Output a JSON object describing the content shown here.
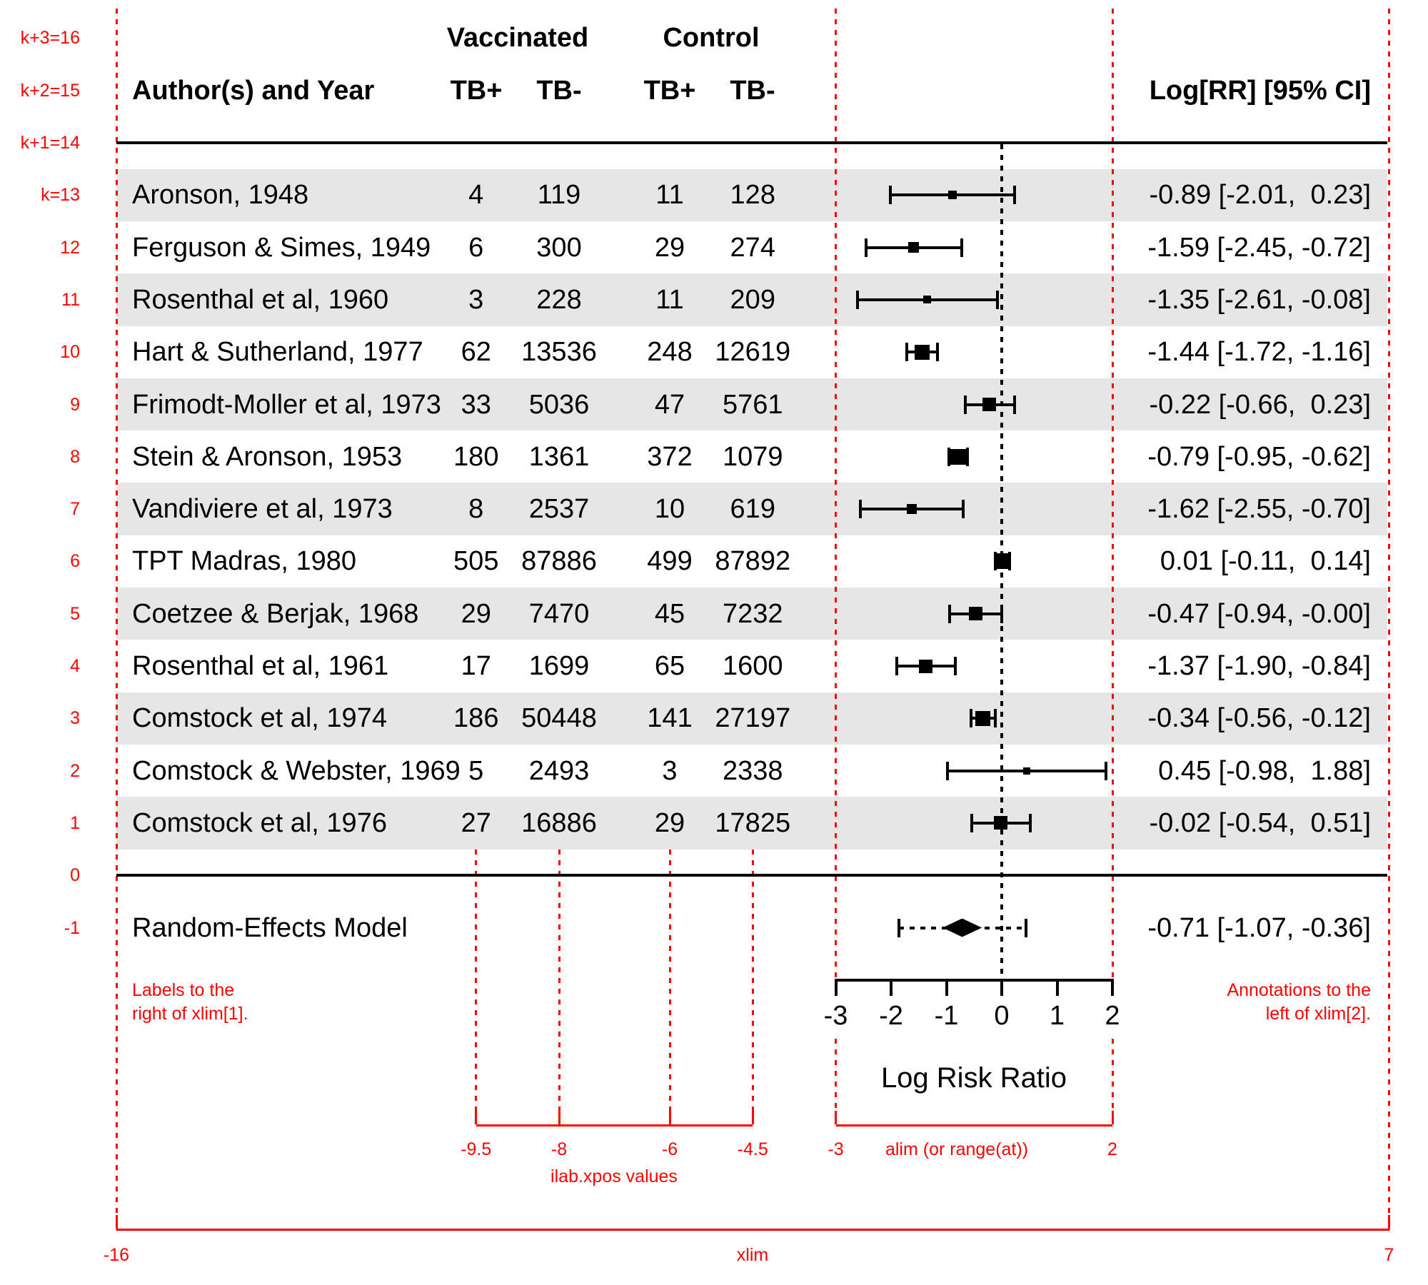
{
  "colors": {
    "red_annotation": "#ff0000",
    "row_band": "#e6e6e6",
    "ink": "#000000"
  },
  "header": {
    "author": "Author(s) and Year",
    "group1": "Vaccinated",
    "group2": "Control",
    "cols": [
      "TB+",
      "TB-",
      "TB+",
      "TB-"
    ],
    "annotation": "Log[RR] [95% CI]"
  },
  "chart_data": {
    "type": "forest",
    "xlabel": "Log Risk Ratio",
    "x_axis": {
      "ticks": [
        -3,
        -2,
        -1,
        0,
        1,
        2
      ],
      "alim": [
        -3,
        2
      ],
      "xlim": [
        -16,
        7
      ],
      "zero_line": 0,
      "grid": false
    },
    "ilab_xpos": [
      -9.5,
      -8,
      -6,
      -4.5
    ],
    "studies": [
      {
        "row": 13,
        "author": "Aronson, 1948",
        "vac_tb_pos": 4,
        "vac_tb_neg": 119,
        "con_tb_pos": 11,
        "con_tb_neg": 128,
        "est": -0.89,
        "ci_lo": -2.01,
        "ci_hi": 0.23,
        "annotation": "-0.89 [-2.01,  0.23]",
        "shaded": true,
        "psize": 12
      },
      {
        "row": 12,
        "author": "Ferguson & Simes, 1949",
        "vac_tb_pos": 6,
        "vac_tb_neg": 300,
        "con_tb_pos": 29,
        "con_tb_neg": 274,
        "est": -1.59,
        "ci_lo": -2.45,
        "ci_hi": -0.72,
        "annotation": "-1.59 [-2.45, -0.72]",
        "shaded": false,
        "psize": 15
      },
      {
        "row": 11,
        "author": "Rosenthal et al, 1960",
        "vac_tb_pos": 3,
        "vac_tb_neg": 228,
        "con_tb_pos": 11,
        "con_tb_neg": 209,
        "est": -1.35,
        "ci_lo": -2.61,
        "ci_hi": -0.08,
        "annotation": "-1.35 [-2.61, -0.08]",
        "shaded": true,
        "psize": 11
      },
      {
        "row": 10,
        "author": "Hart & Sutherland, 1977",
        "vac_tb_pos": 62,
        "vac_tb_neg": 13536,
        "con_tb_pos": 248,
        "con_tb_neg": 12619,
        "est": -1.44,
        "ci_lo": -1.72,
        "ci_hi": -1.16,
        "annotation": "-1.44 [-1.72, -1.16]",
        "shaded": false,
        "psize": 21
      },
      {
        "row": 9,
        "author": "Frimodt-Moller et al, 1973",
        "vac_tb_pos": 33,
        "vac_tb_neg": 5036,
        "con_tb_pos": 47,
        "con_tb_neg": 5761,
        "est": -0.22,
        "ci_lo": -0.66,
        "ci_hi": 0.23,
        "annotation": "-0.22 [-0.66,  0.23]",
        "shaded": true,
        "psize": 19
      },
      {
        "row": 8,
        "author": "Stein & Aronson, 1953",
        "vac_tb_pos": 180,
        "vac_tb_neg": 1361,
        "con_tb_pos": 372,
        "con_tb_neg": 1079,
        "est": -0.79,
        "ci_lo": -0.95,
        "ci_hi": -0.62,
        "annotation": "-0.79 [-0.95, -0.62]",
        "shaded": false,
        "psize": 22
      },
      {
        "row": 7,
        "author": "Vandiviere et al, 1973",
        "vac_tb_pos": 8,
        "vac_tb_neg": 2537,
        "con_tb_pos": 10,
        "con_tb_neg": 619,
        "est": -1.62,
        "ci_lo": -2.55,
        "ci_hi": -0.7,
        "annotation": "-1.62 [-2.55, -0.70]",
        "shaded": true,
        "psize": 14
      },
      {
        "row": 6,
        "author": "TPT Madras, 1980",
        "vac_tb_pos": 505,
        "vac_tb_neg": 87886,
        "con_tb_pos": 499,
        "con_tb_neg": 87892,
        "est": 0.01,
        "ci_lo": -0.11,
        "ci_hi": 0.14,
        "annotation": " 0.01 [-0.11,  0.14]",
        "shaded": false,
        "psize": 22
      },
      {
        "row": 5,
        "author": "Coetzee & Berjak, 1968",
        "vac_tb_pos": 29,
        "vac_tb_neg": 7470,
        "con_tb_pos": 45,
        "con_tb_neg": 7232,
        "est": -0.47,
        "ci_lo": -0.94,
        "ci_hi": 0.0,
        "annotation": "-0.47 [-0.94, -0.00]",
        "shaded": true,
        "psize": 19
      },
      {
        "row": 4,
        "author": "Rosenthal et al, 1961",
        "vac_tb_pos": 17,
        "vac_tb_neg": 1699,
        "con_tb_pos": 65,
        "con_tb_neg": 1600,
        "est": -1.37,
        "ci_lo": -1.9,
        "ci_hi": -0.84,
        "annotation": "-1.37 [-1.90, -0.84]",
        "shaded": false,
        "psize": 19
      },
      {
        "row": 3,
        "author": "Comstock et al, 1974",
        "vac_tb_pos": 186,
        "vac_tb_neg": 50448,
        "con_tb_pos": 141,
        "con_tb_neg": 27197,
        "est": -0.34,
        "ci_lo": -0.56,
        "ci_hi": -0.12,
        "annotation": "-0.34 [-0.56, -0.12]",
        "shaded": true,
        "psize": 21
      },
      {
        "row": 2,
        "author": "Comstock & Webster, 1969",
        "vac_tb_pos": 5,
        "vac_tb_neg": 2493,
        "con_tb_pos": 3,
        "con_tb_neg": 2338,
        "est": 0.45,
        "ci_lo": -0.98,
        "ci_hi": 1.88,
        "annotation": " 0.45 [-0.98,  1.88]",
        "shaded": false,
        "psize": 10
      },
      {
        "row": 1,
        "author": "Comstock et al, 1976",
        "vac_tb_pos": 27,
        "vac_tb_neg": 16886,
        "con_tb_pos": 29,
        "con_tb_neg": 17825,
        "est": -0.02,
        "ci_lo": -0.54,
        "ci_hi": 0.51,
        "annotation": "-0.02 [-0.54,  0.51]",
        "shaded": true,
        "psize": 19
      }
    ],
    "summary": {
      "row": -1,
      "label": "Random-Effects Model",
      "est": -0.71,
      "ci_lo": -1.07,
      "ci_hi": -0.36,
      "pred_lo": -1.86,
      "pred_hi": 0.44,
      "annotation": "-0.71 [-1.07, -0.36]"
    }
  },
  "annotations_red": {
    "row_labels": [
      {
        "row": 16,
        "text": "k+3=16"
      },
      {
        "row": 15,
        "text": "k+2=15"
      },
      {
        "row": 14,
        "text": "k+1=14"
      },
      {
        "row": 13,
        "text": "k=13"
      },
      {
        "row": 12,
        "text": "12"
      },
      {
        "row": 11,
        "text": "11"
      },
      {
        "row": 10,
        "text": "10"
      },
      {
        "row": 9,
        "text": "9"
      },
      {
        "row": 8,
        "text": "8"
      },
      {
        "row": 7,
        "text": "7"
      },
      {
        "row": 6,
        "text": "6"
      },
      {
        "row": 5,
        "text": "5"
      },
      {
        "row": 4,
        "text": "4"
      },
      {
        "row": 3,
        "text": "3"
      },
      {
        "row": 2,
        "text": "2"
      },
      {
        "row": 1,
        "text": "1"
      },
      {
        "row": 0,
        "text": "0"
      },
      {
        "row": -1,
        "text": "-1"
      }
    ],
    "note_left": [
      "Labels to the",
      "right of xlim[1]."
    ],
    "note_right": [
      "Annotations to the",
      "left of xlim[2]."
    ],
    "ilab_axis": {
      "ticks": [
        "-9.5",
        "-8",
        "-6",
        "-4.5"
      ],
      "caption": "ilab.xpos values"
    },
    "alim_axis": {
      "ticks": [
        "-3",
        "2"
      ],
      "caption": "alim (or range(at))"
    },
    "xlim_axis": {
      "ticks": [
        "-16",
        "7"
      ],
      "caption": "xlim"
    }
  }
}
